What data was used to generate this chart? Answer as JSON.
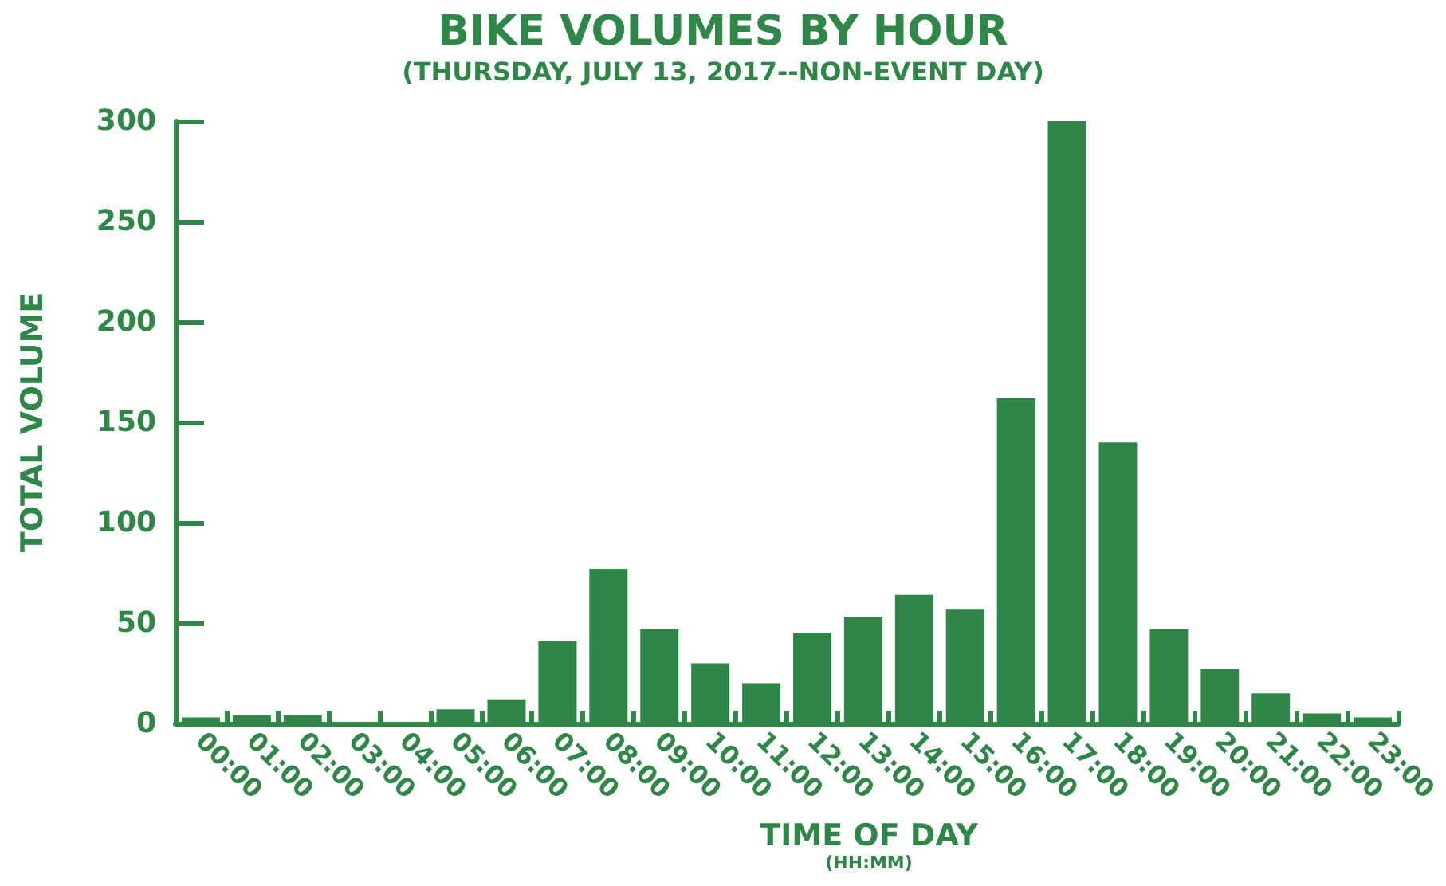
{
  "chart_data": {
    "type": "bar",
    "title": "BIKE VOLUMES BY HOUR",
    "subtitle": "(THURSDAY, JULY 13, 2017--NON-EVENT DAY)",
    "xlabel": "TIME OF DAY",
    "annotations": [
      "(HH:MM)"
    ],
    "ylabel": "TOTAL VOLUME",
    "categories": [
      "00:00",
      "01:00",
      "02:00",
      "03:00",
      "04:00",
      "05:00",
      "06:00",
      "07:00",
      "08:00",
      "09:00",
      "10:00",
      "11:00",
      "12:00",
      "13:00",
      "14:00",
      "15:00",
      "16:00",
      "17:00",
      "18:00",
      "19:00",
      "20:00",
      "21:00",
      "22:00",
      "23:00"
    ],
    "values": [
      3,
      4,
      4,
      0,
      0,
      7,
      12,
      41,
      77,
      47,
      30,
      20,
      45,
      53,
      64,
      57,
      162,
      300,
      140,
      47,
      27,
      15,
      5,
      3
    ],
    "color": "#2e8647",
    "ylim": [
      0,
      300
    ],
    "yticks": [
      0,
      50,
      100,
      150,
      200,
      250,
      300
    ],
    "grid": false
  }
}
